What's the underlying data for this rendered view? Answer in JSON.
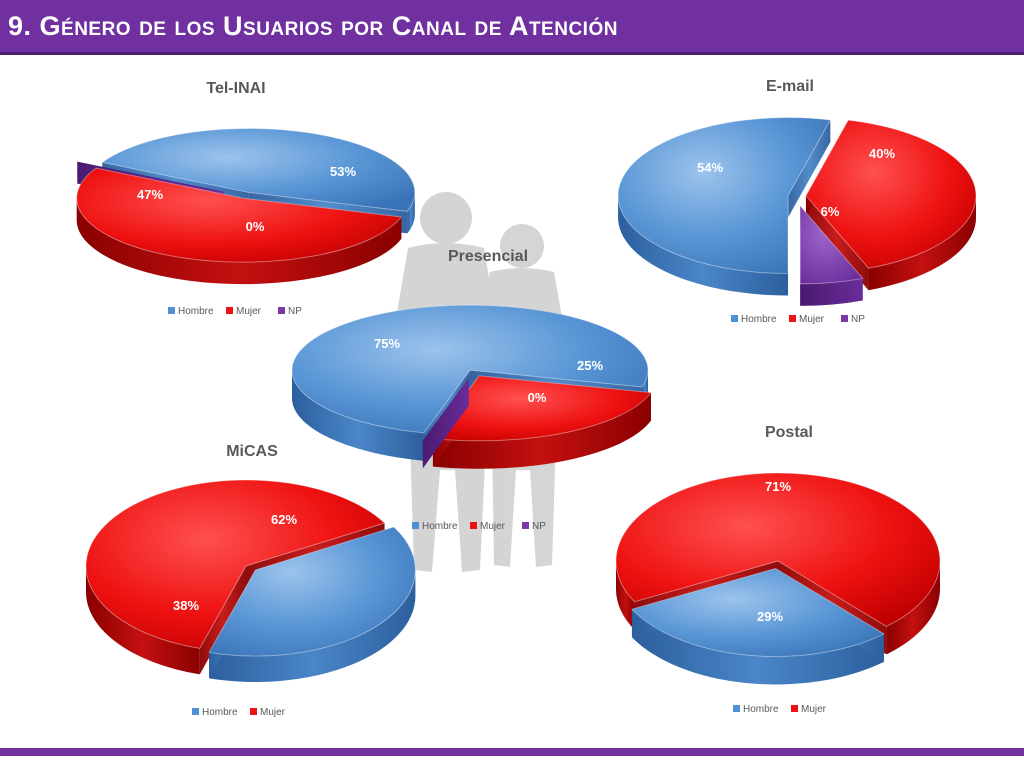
{
  "page": {
    "title": "9. Género de los Usuarios por Canal de Atención"
  },
  "colors": {
    "title_bar": "#7030a0",
    "Hombre": "#4f8fd3",
    "Mujer": "#ee1111",
    "NP": "#7a3aa8"
  },
  "chart_data": [
    {
      "type": "pie",
      "style": "3d-exploded",
      "title": "Tel-INAI",
      "categories": [
        "Hombre",
        "Mujer",
        "NP"
      ],
      "values": [
        47,
        53,
        0
      ],
      "labels": [
        "47%",
        "53%",
        "0%"
      ],
      "legend": [
        "Hombre",
        "Mujer",
        "NP"
      ],
      "legend_position": "bottom"
    },
    {
      "type": "pie",
      "style": "3d-exploded",
      "title": "E-mail",
      "categories": [
        "Hombre",
        "Mujer",
        "NP"
      ],
      "values": [
        54,
        40,
        6
      ],
      "labels": [
        "54%",
        "40%",
        "6%"
      ],
      "legend": [
        "Hombre",
        "Mujer",
        "NP"
      ],
      "legend_position": "bottom"
    },
    {
      "type": "pie",
      "style": "3d-exploded",
      "title": "Presencial",
      "categories": [
        "Hombre",
        "Mujer",
        "NP"
      ],
      "values": [
        75,
        25,
        0
      ],
      "labels": [
        "75%",
        "25%",
        "0%"
      ],
      "legend": [
        "Hombre",
        "Mujer",
        "NP"
      ],
      "legend_position": "bottom"
    },
    {
      "type": "pie",
      "style": "3d-exploded",
      "title": "MiCAS",
      "categories": [
        "Hombre",
        "Mujer"
      ],
      "values": [
        38,
        62
      ],
      "labels": [
        "38%",
        "62%"
      ],
      "legend": [
        "Hombre",
        "Mujer"
      ],
      "legend_position": "bottom"
    },
    {
      "type": "pie",
      "style": "3d-exploded",
      "title": "Postal",
      "categories": [
        "Hombre",
        "Mujer"
      ],
      "values": [
        29,
        71
      ],
      "labels": [
        "29%",
        "71%"
      ],
      "legend": [
        "Hombre",
        "Mujer"
      ],
      "legend_position": "bottom"
    }
  ]
}
